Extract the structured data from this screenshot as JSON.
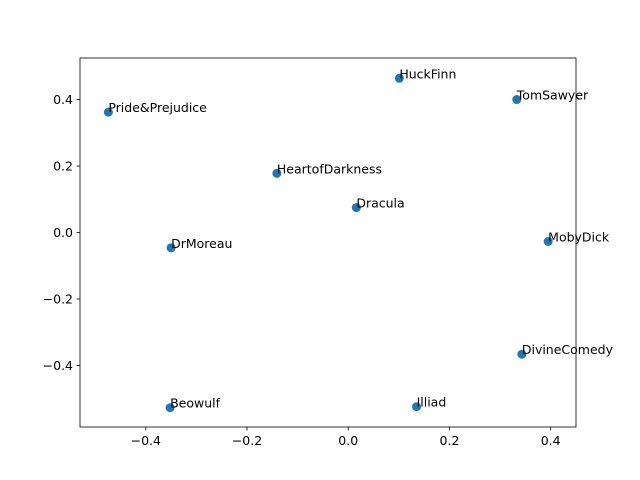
{
  "chart_data": {
    "type": "scatter",
    "title": "",
    "xlabel": "",
    "ylabel": "",
    "xlim": [
      -0.53,
      0.45
    ],
    "ylim": [
      -0.585,
      0.525
    ],
    "xticks": [
      -0.4,
      -0.2,
      0.0,
      0.2,
      0.4
    ],
    "yticks": [
      -0.4,
      -0.2,
      0.0,
      0.2,
      0.4
    ],
    "xtick_labels": [
      "−0.4",
      "−0.2",
      "0.0",
      "0.2",
      "0.4"
    ],
    "ytick_labels": [
      "−0.4",
      "−0.2",
      "0.0",
      "0.2",
      "0.4"
    ],
    "grid": false,
    "marker_color": "#1f77b4",
    "points": [
      {
        "label": "HuckFinn",
        "x": 0.101,
        "y": 0.464
      },
      {
        "label": "TomSawyer",
        "x": 0.333,
        "y": 0.4
      },
      {
        "label": "Pride&Prejudice",
        "x": -0.474,
        "y": 0.362
      },
      {
        "label": "HeartofDarkness",
        "x": -0.141,
        "y": 0.178
      },
      {
        "label": "Dracula",
        "x": 0.016,
        "y": 0.075
      },
      {
        "label": "MobyDick",
        "x": 0.395,
        "y": -0.027
      },
      {
        "label": "DrMoreau",
        "x": -0.35,
        "y": -0.046
      },
      {
        "label": "DivineComedy",
        "x": 0.343,
        "y": -0.366
      },
      {
        "label": "Beowulf",
        "x": -0.352,
        "y": -0.527
      },
      {
        "label": "Illiad",
        "x": 0.135,
        "y": -0.524
      }
    ]
  }
}
